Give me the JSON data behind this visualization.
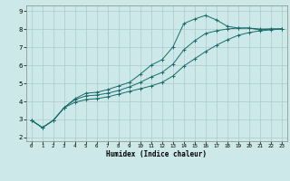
{
  "xlabel": "Humidex (Indice chaleur)",
  "background_color": "#cce8e8",
  "grid_color": "#aacccc",
  "line_color": "#1a6b6b",
  "xlim": [
    -0.5,
    23.5
  ],
  "ylim": [
    1.8,
    9.3
  ],
  "xticks": [
    0,
    1,
    2,
    3,
    4,
    5,
    6,
    7,
    8,
    9,
    10,
    11,
    12,
    13,
    14,
    15,
    16,
    17,
    18,
    19,
    20,
    21,
    22,
    23
  ],
  "yticks": [
    2,
    3,
    4,
    5,
    6,
    7,
    8,
    9
  ],
  "line1_x": [
    0,
    1,
    2,
    3,
    4,
    5,
    6,
    7,
    8,
    9,
    10,
    11,
    12,
    13,
    14,
    15,
    16,
    17,
    18,
    19,
    20,
    21,
    22,
    23
  ],
  "line1_y": [
    2.95,
    2.55,
    2.95,
    3.65,
    4.15,
    4.45,
    4.5,
    4.65,
    4.85,
    5.05,
    5.5,
    6.0,
    6.3,
    7.0,
    8.3,
    8.55,
    8.75,
    8.5,
    8.15,
    8.05,
    8.05,
    7.95,
    8.0,
    8.0
  ],
  "line2_x": [
    0,
    1,
    2,
    3,
    4,
    5,
    6,
    7,
    8,
    9,
    10,
    11,
    12,
    13,
    14,
    15,
    16,
    17,
    18,
    19,
    20,
    21,
    22,
    23
  ],
  "line2_y": [
    2.95,
    2.55,
    2.95,
    3.65,
    4.1,
    4.3,
    4.35,
    4.45,
    4.6,
    4.8,
    5.05,
    5.35,
    5.6,
    6.05,
    6.85,
    7.35,
    7.75,
    7.9,
    8.0,
    8.05,
    8.05,
    8.0,
    8.0,
    8.0
  ],
  "line3_x": [
    0,
    1,
    2,
    3,
    4,
    5,
    6,
    7,
    8,
    9,
    10,
    11,
    12,
    13,
    14,
    15,
    16,
    17,
    18,
    19,
    20,
    21,
    22,
    23
  ],
  "line3_y": [
    2.95,
    2.55,
    2.95,
    3.65,
    3.95,
    4.1,
    4.15,
    4.25,
    4.4,
    4.55,
    4.7,
    4.85,
    5.05,
    5.4,
    5.95,
    6.35,
    6.75,
    7.1,
    7.4,
    7.65,
    7.8,
    7.9,
    7.95,
    8.0
  ]
}
